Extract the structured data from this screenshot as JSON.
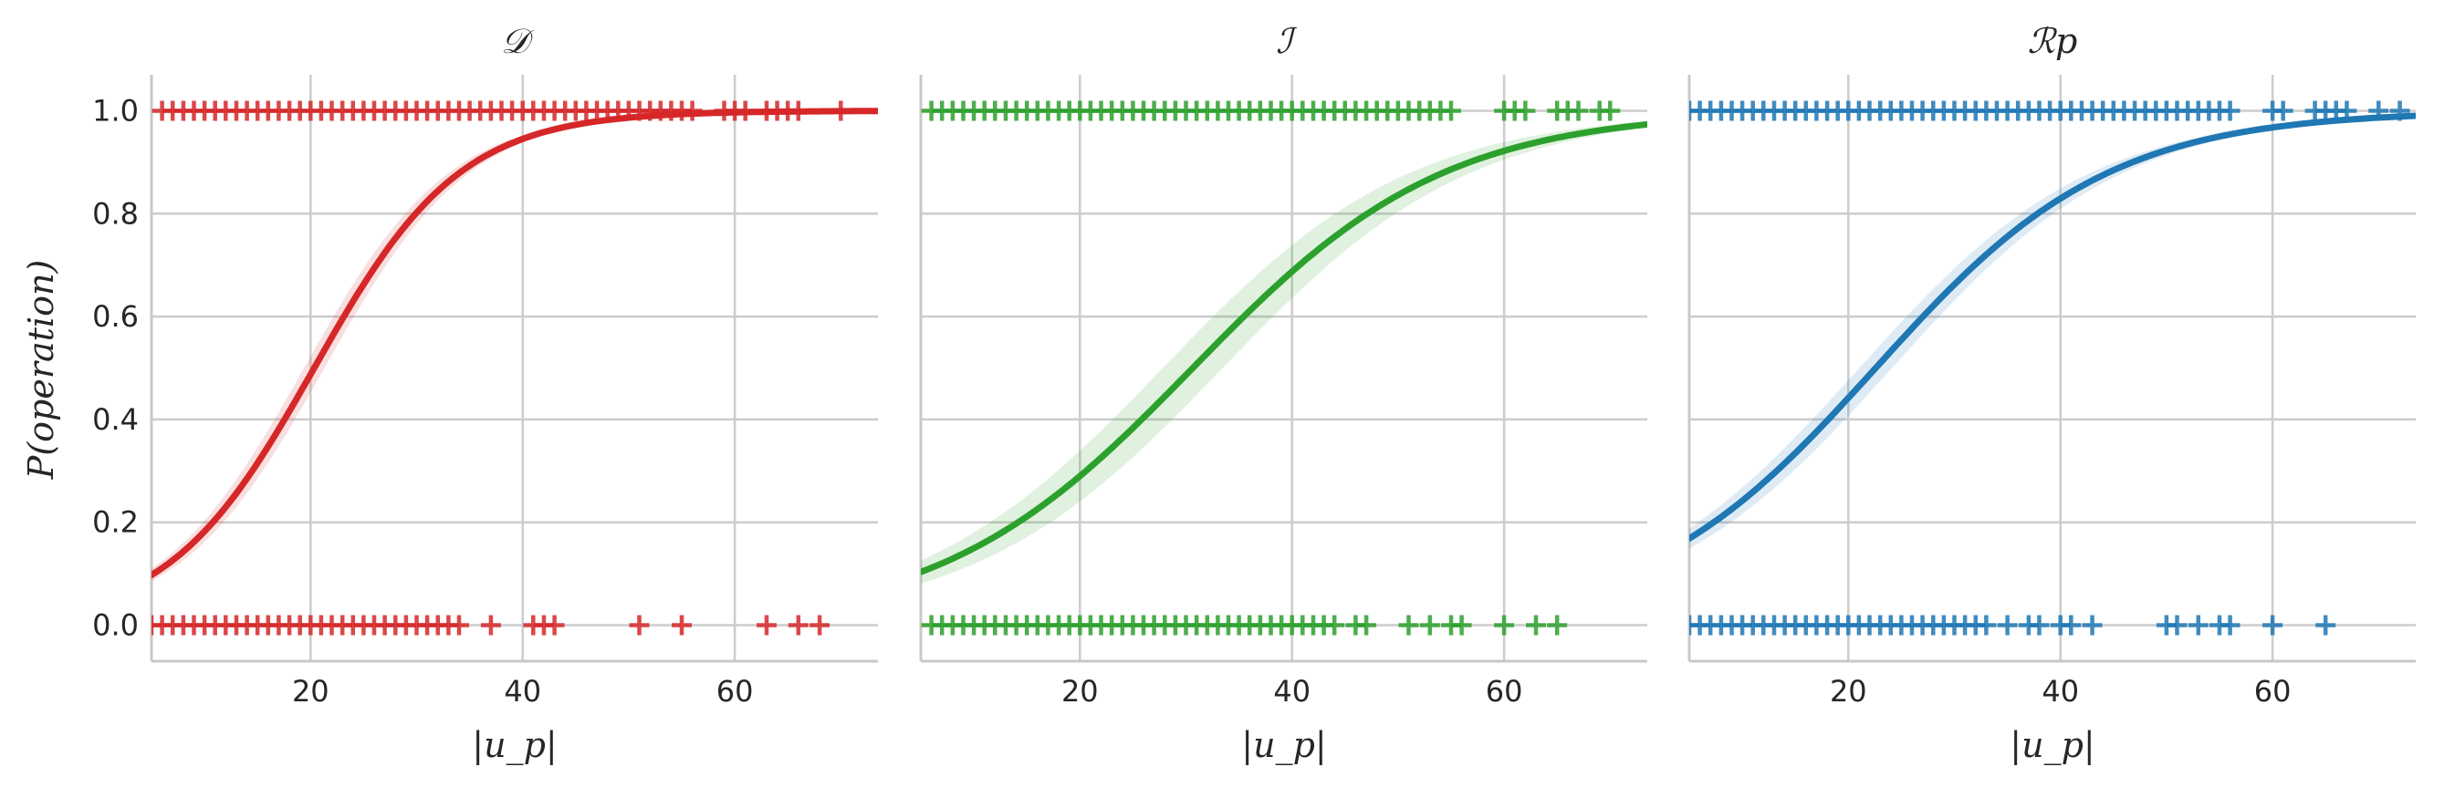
{
  "figure": {
    "ylabel": "P(operation)",
    "xlabel": "|u_p|"
  },
  "chart_data": [
    {
      "type": "scatter",
      "title": "𝒟",
      "xlabel": "|u_p|",
      "ylabel": "P(operation)",
      "xlim": [
        5,
        73.5
      ],
      "ylim": [
        -0.07,
        1.07
      ],
      "xticks": [
        20,
        40,
        60
      ],
      "yticks": [
        0.0,
        0.2,
        0.4,
        0.6,
        0.8,
        1.0
      ],
      "ytick_labels": [
        "0.0",
        "0.2",
        "0.4",
        "0.6",
        "0.8",
        "1.0"
      ],
      "grid": true,
      "color": "#d62728",
      "series": [
        {
          "kind": "points",
          "y": 1,
          "x": [
            6,
            7,
            8,
            9,
            10,
            11,
            12,
            13,
            14,
            15,
            16,
            17,
            18,
            19,
            20,
            21,
            22,
            23,
            24,
            25,
            26,
            27,
            28,
            29,
            30,
            31,
            32,
            33,
            34,
            35,
            36,
            37,
            38,
            39,
            40,
            41,
            42,
            43,
            44,
            45,
            46,
            47,
            48,
            49,
            50,
            51,
            52,
            53,
            54,
            55,
            56,
            59,
            60,
            61,
            63,
            64,
            65,
            66,
            70
          ]
        },
        {
          "kind": "points",
          "y": 0,
          "x": [
            5,
            6,
            7,
            8,
            9,
            10,
            11,
            12,
            13,
            14,
            15,
            16,
            17,
            18,
            19,
            20,
            21,
            22,
            23,
            24,
            25,
            26,
            27,
            28,
            29,
            30,
            31,
            32,
            33,
            34,
            37,
            41,
            42,
            43,
            51,
            55,
            63,
            66,
            68
          ]
        },
        {
          "kind": "logistic_fit",
          "intercept": -2.95,
          "slope": 0.145,
          "x_range": [
            5,
            73.5
          ],
          "ci_halfwidth": 0.035
        }
      ]
    },
    {
      "type": "scatter",
      "title": "ℐ",
      "xlabel": "|u_p|",
      "ylabel": "",
      "xlim": [
        5,
        73.5
      ],
      "ylim": [
        -0.07,
        1.07
      ],
      "xticks": [
        20,
        40,
        60
      ],
      "yticks": [
        0.0,
        0.2,
        0.4,
        0.6,
        0.8,
        1.0
      ],
      "grid": true,
      "color": "#2ca02c",
      "series": [
        {
          "kind": "points",
          "y": 1,
          "x": [
            6,
            7,
            8,
            9,
            10,
            11,
            12,
            13,
            14,
            15,
            16,
            17,
            18,
            19,
            20,
            21,
            22,
            23,
            24,
            25,
            26,
            27,
            28,
            29,
            30,
            31,
            32,
            33,
            34,
            35,
            36,
            37,
            38,
            39,
            40,
            41,
            42,
            43,
            44,
            45,
            46,
            47,
            48,
            49,
            50,
            51,
            52,
            53,
            54,
            55,
            60,
            61,
            62,
            65,
            66,
            67,
            69,
            70
          ]
        },
        {
          "kind": "points",
          "y": 0,
          "x": [
            6,
            7,
            8,
            9,
            10,
            11,
            12,
            13,
            14,
            15,
            16,
            17,
            18,
            19,
            20,
            21,
            22,
            23,
            24,
            25,
            26,
            27,
            28,
            29,
            30,
            31,
            32,
            33,
            34,
            35,
            36,
            37,
            38,
            39,
            40,
            41,
            42,
            43,
            44,
            46,
            47,
            51,
            53,
            55,
            56,
            60,
            63,
            65
          ]
        },
        {
          "kind": "logistic_fit",
          "intercept": -2.58,
          "slope": 0.0842,
          "x_range": [
            5,
            73.5
          ],
          "ci_halfwidth": 0.06
        }
      ]
    },
    {
      "type": "scatter",
      "title": "ℛp",
      "xlabel": "|u_p|",
      "ylabel": "",
      "xlim": [
        5,
        73.5
      ],
      "ylim": [
        -0.07,
        1.07
      ],
      "xticks": [
        20,
        40,
        60
      ],
      "yticks": [
        0.0,
        0.2,
        0.4,
        0.6,
        0.8,
        1.0
      ],
      "grid": true,
      "color": "#1f77b4",
      "series": [
        {
          "kind": "points",
          "y": 1,
          "x": [
            5,
            6,
            7,
            8,
            9,
            10,
            11,
            12,
            13,
            14,
            15,
            16,
            17,
            18,
            19,
            20,
            21,
            22,
            23,
            24,
            25,
            26,
            27,
            28,
            29,
            30,
            31,
            32,
            33,
            34,
            35,
            36,
            37,
            38,
            39,
            40,
            41,
            42,
            43,
            44,
            45,
            46,
            47,
            48,
            49,
            50,
            51,
            52,
            53,
            54,
            55,
            56,
            60,
            61,
            64,
            65,
            66,
            67,
            70,
            72
          ]
        },
        {
          "kind": "points",
          "y": 0,
          "x": [
            5,
            6,
            7,
            8,
            9,
            10,
            11,
            12,
            13,
            14,
            15,
            16,
            17,
            18,
            19,
            20,
            21,
            22,
            23,
            24,
            25,
            26,
            27,
            28,
            29,
            30,
            31,
            32,
            33,
            35,
            37,
            38,
            40,
            41,
            43,
            50,
            51,
            53,
            55,
            56,
            60,
            65
          ]
        },
        {
          "kind": "logistic_fit",
          "intercept": -2.05,
          "slope": 0.0908,
          "x_range": [
            5,
            73.5
          ],
          "ci_halfwidth": 0.035
        }
      ]
    }
  ]
}
